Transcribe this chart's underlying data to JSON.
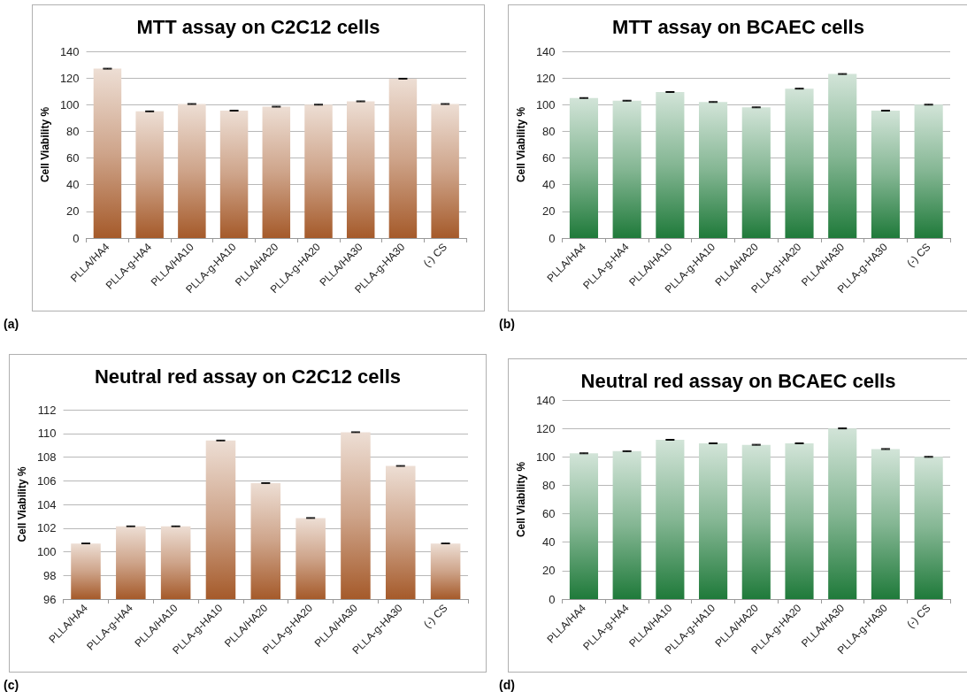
{
  "chart_data": [
    {
      "type": "bar",
      "title": "MTT assay on C2C12 cells",
      "ylabel": "Cell Viability %",
      "annotations": [
        "(a)"
      ],
      "categories": [
        "PLLA/HA4",
        "PLLA-g-HA4",
        "PLLA/HA10",
        "PLLA-g-HA10",
        "PLLA/HA20",
        "PLLA-g-HA20",
        "PLLA/HA30",
        "PLLA-g-HA30",
        "(-) CS"
      ],
      "values": [
        127,
        95,
        100.5,
        95.5,
        98.5,
        100,
        102.5,
        119.5,
        100.5
      ],
      "errors": [
        0.3,
        0.3,
        0.3,
        0.3,
        0.3,
        0.3,
        0.3,
        0.3,
        0.3
      ],
      "color": "#a55a2a",
      "ylim": [
        0,
        140
      ],
      "yticks": [
        0,
        20,
        40,
        60,
        80,
        100,
        120,
        140
      ],
      "grid": "y"
    },
    {
      "type": "bar",
      "title": "MTT assay on BCAEC cells",
      "ylabel": "Cell Viability %",
      "annotations": [
        "(b)"
      ],
      "categories": [
        "PLLA/HA4",
        "PLLA-g-HA4",
        "PLLA/HA10",
        "PLLA-g-HA10",
        "PLLA/HA20",
        "PLLA-g-HA20",
        "PLLA/HA30",
        "PLLA-g-HA30",
        "(-) CS"
      ],
      "values": [
        105,
        103,
        109.5,
        102,
        98,
        112,
        123,
        95.5,
        100
      ],
      "errors": [
        0.3,
        0.3,
        0.3,
        0.3,
        0.3,
        0.3,
        0.3,
        0.3,
        0.3
      ],
      "color": "#1f7a3a",
      "ylim": [
        0,
        140
      ],
      "yticks": [
        0,
        20,
        40,
        60,
        80,
        100,
        120,
        140
      ],
      "grid": "y"
    },
    {
      "type": "bar",
      "title": "Neutral red assay on C2C12 cells",
      "ylabel": "Cell Viability %",
      "annotations": [
        "(c)"
      ],
      "categories": [
        "PLLA/HA4",
        "PLLA-g-HA4",
        "PLLA/HA10",
        "PLLA-g-HA10",
        "PLLA/HA20",
        "PLLA-g-HA20",
        "PLLA/HA30",
        "PLLA-g-HA30",
        "(-) CS"
      ],
      "values": [
        100.7,
        102.15,
        102.15,
        109.4,
        105.8,
        102.85,
        110.1,
        107.25,
        100.7
      ],
      "errors": [
        0.03,
        0.03,
        0.03,
        0.03,
        0.03,
        0.03,
        0.03,
        0.03,
        0.03
      ],
      "color": "#a55a2a",
      "ylim": [
        96,
        112
      ],
      "yticks": [
        96,
        98,
        100,
        102,
        104,
        106,
        108,
        110,
        112
      ],
      "grid": "y"
    },
    {
      "type": "bar",
      "title": "Neutral red assay on BCAEC cells",
      "ylabel": "Cell Viability %",
      "annotations": [
        "(d)"
      ],
      "categories": [
        "PLLA/HA4",
        "PLLA-g-HA4",
        "PLLA/HA10",
        "PLLA-g-HA10",
        "PLLA/HA20",
        "PLLA-g-HA20",
        "PLLA/HA30",
        "PLLA-g-HA30",
        "(-) CS"
      ],
      "values": [
        102.5,
        104,
        112,
        109.5,
        108.5,
        109.5,
        120,
        105.5,
        100
      ],
      "errors": [
        0.3,
        0.3,
        0.3,
        0.3,
        0.3,
        0.3,
        0.3,
        0.3,
        0.3
      ],
      "color": "#1f7a3a",
      "ylim": [
        0,
        140
      ],
      "yticks": [
        0,
        20,
        40,
        60,
        80,
        100,
        120,
        140
      ],
      "grid": "y"
    }
  ]
}
